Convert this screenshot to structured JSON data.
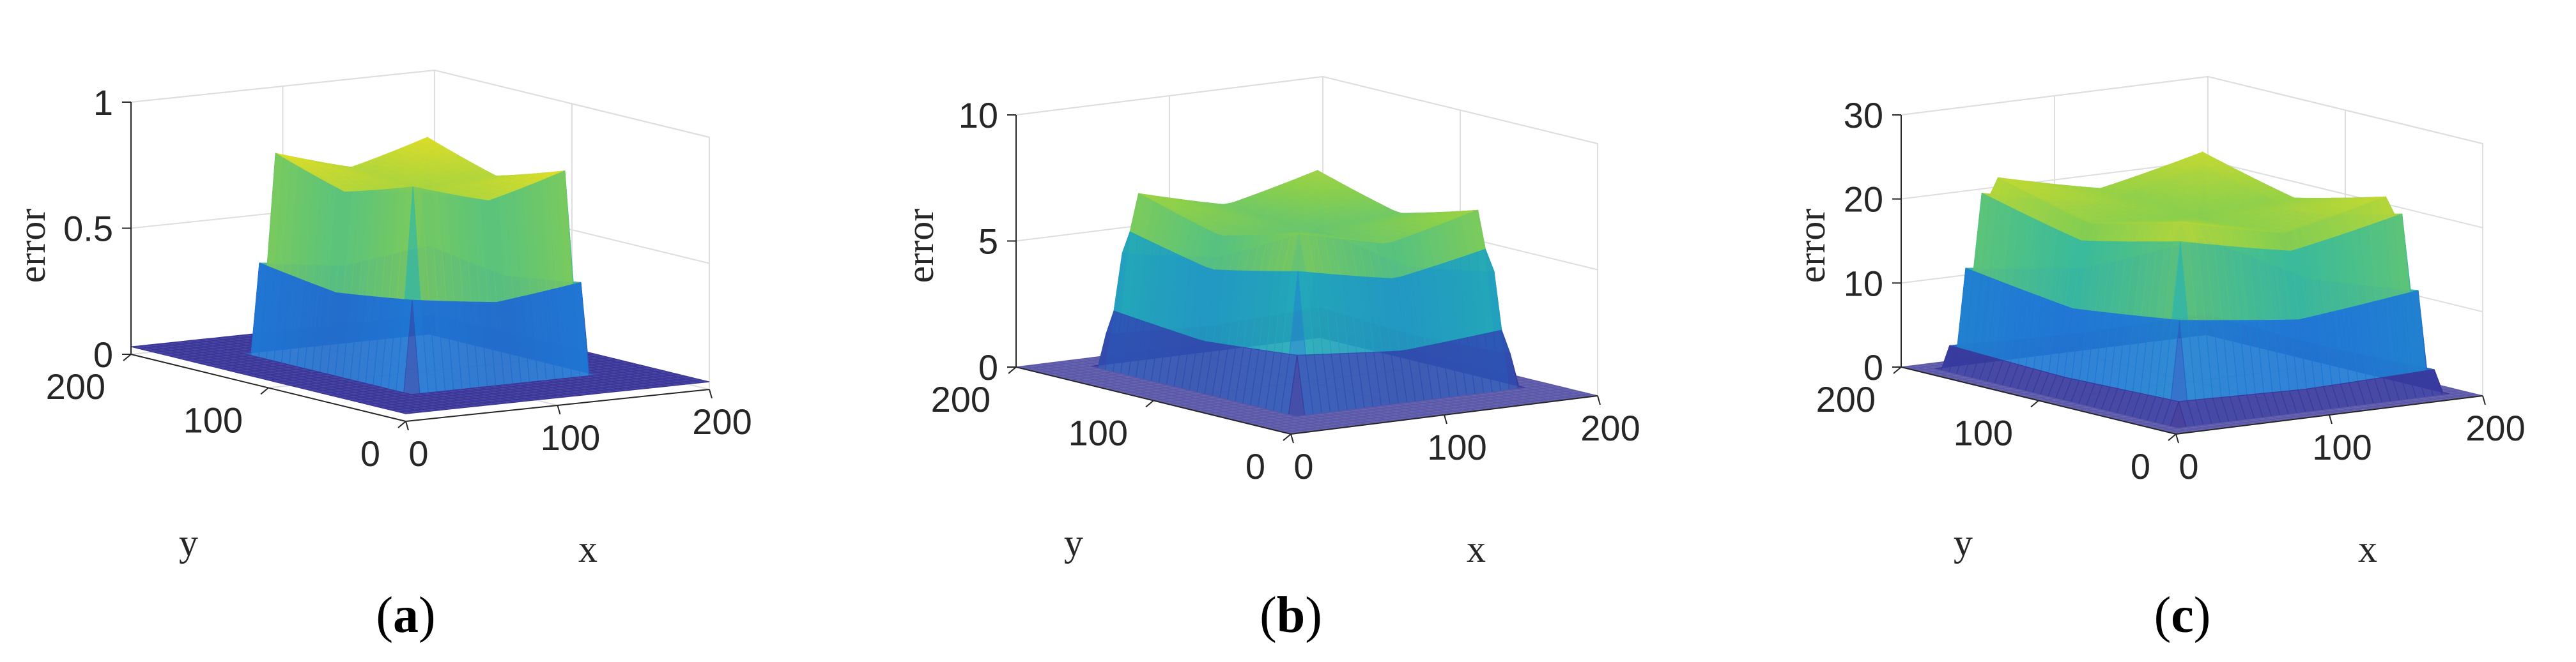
{
  "chart_data": [
    {
      "type": "surface",
      "panel_label": "a",
      "zlabel": "error",
      "xlabel": "x",
      "ylabel": "y",
      "xlim": [
        0,
        200
      ],
      "ylim": [
        0,
        200
      ],
      "zlim": [
        0,
        1
      ],
      "x_ticks": [
        "0",
        "100",
        "200"
      ],
      "y_ticks": [
        "0",
        "100",
        "200"
      ],
      "z_ticks": [
        "0",
        "0.5",
        "1"
      ],
      "surface": {
        "plateau_min_x": 40,
        "plateau_max_x": 160,
        "plateau_min_y": 40,
        "plateau_max_y": 160,
        "corner_peak": 0.85,
        "center_value": 0.72,
        "outside_value": 0.03
      }
    },
    {
      "type": "surface",
      "panel_label": "b",
      "zlabel": "error",
      "xlabel": "x",
      "ylabel": "y",
      "xlim": [
        0,
        200
      ],
      "ylim": [
        0,
        200
      ],
      "zlim": [
        0,
        10
      ],
      "x_ticks": [
        "0",
        "100",
        "200"
      ],
      "y_ticks": [
        "0",
        "100",
        "200"
      ],
      "z_ticks": [
        "0",
        "5",
        "10"
      ],
      "surface": {
        "plateau_min_x": 35,
        "plateau_max_x": 180,
        "plateau_min_y": 35,
        "plateau_max_y": 180,
        "corner_peak": 7.2,
        "center_value": 5.8,
        "outside_value": 0.0
      }
    },
    {
      "type": "surface",
      "panel_label": "c",
      "zlabel": "error",
      "xlabel": "x",
      "ylabel": "y",
      "xlim": [
        0,
        200
      ],
      "ylim": [
        0,
        200
      ],
      "zlim": [
        0,
        30
      ],
      "x_ticks": [
        "0",
        "100",
        "200"
      ],
      "y_ticks": [
        "0",
        "100",
        "200"
      ],
      "z_ticks": [
        "0",
        "10",
        "20",
        "30"
      ],
      "surface": {
        "plateau_min_x": 15,
        "plateau_max_x": 185,
        "plateau_min_y": 15,
        "plateau_max_y": 185,
        "corner_peak": 24,
        "center_value": 19.5,
        "outside_value": 0.0
      }
    }
  ],
  "colors": {
    "low": "#3d2b8f",
    "mid_blue": "#1f77d4",
    "teal": "#23b5b0",
    "green": "#8ccf4a",
    "yellow": "#f4e11c",
    "floor": "#5a57a8",
    "axes": "#262626",
    "grid": "#dedede"
  }
}
